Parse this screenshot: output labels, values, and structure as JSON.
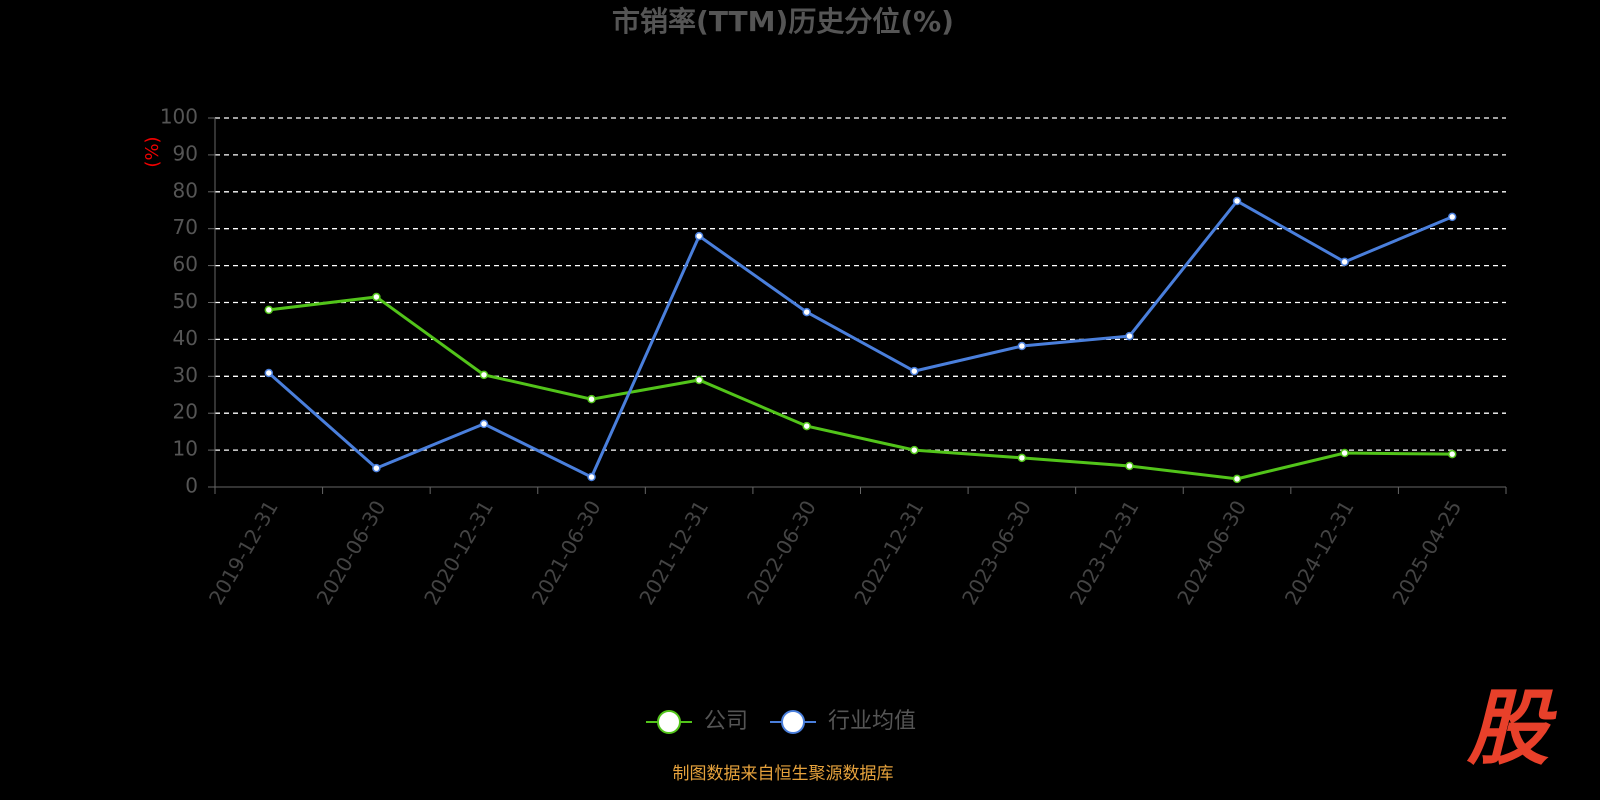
{
  "chart_data": {
    "type": "line",
    "title": "市销率(TTM)历史分位(%)",
    "y_label": "(%)",
    "categories": [
      "2019-12-31",
      "2020-06-30",
      "2020-12-31",
      "2021-06-30",
      "2021-12-31",
      "2022-06-30",
      "2022-12-31",
      "2023-06-30",
      "2023-12-31",
      "2024-06-30",
      "2024-12-31",
      "2025-04-25"
    ],
    "series": [
      {
        "name": "公司",
        "color": "#52c41a",
        "values": [
          48.0,
          51.5,
          30.4,
          23.8,
          29.0,
          16.5,
          10.0,
          7.9,
          5.7,
          2.2,
          9.2,
          8.9
        ]
      },
      {
        "name": "行业均值",
        "color": "#4a7fdc",
        "values": [
          30.9,
          5.1,
          17.1,
          2.7,
          68.0,
          47.4,
          31.4,
          38.2,
          40.9,
          77.5,
          61.0,
          73.2
        ]
      }
    ],
    "ylim": [
      0,
      100
    ],
    "yticks": [
      0,
      10,
      20,
      30,
      40,
      50,
      60,
      70,
      80,
      90,
      100
    ],
    "grid": true,
    "legend": "bottom"
  },
  "source": "制图数据来自恒生聚源数据库",
  "logo": "股"
}
